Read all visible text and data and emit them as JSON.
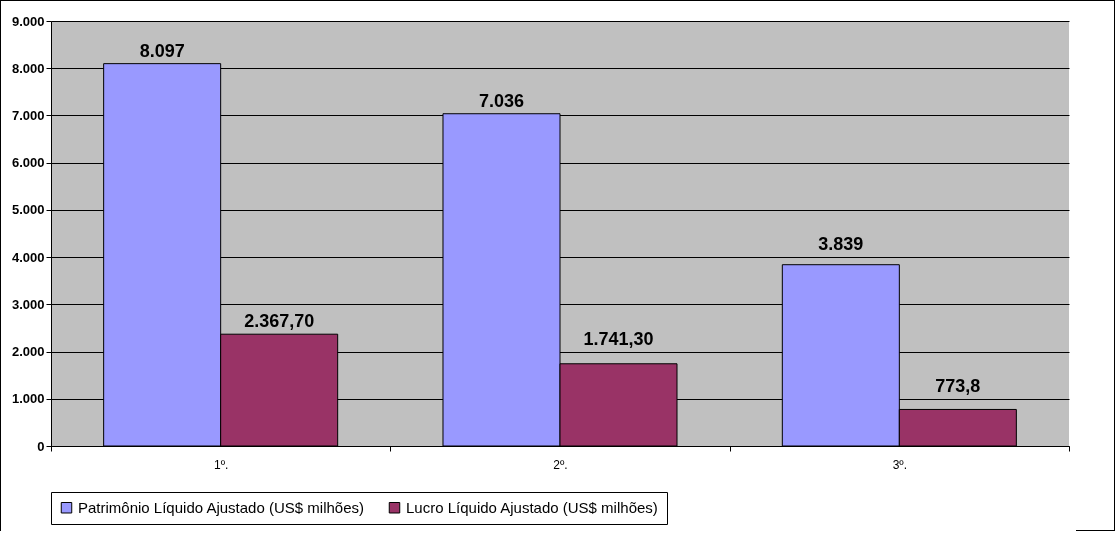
{
  "chart_data": {
    "type": "bar",
    "categories": [
      "1º.",
      "2º.",
      "3º."
    ],
    "series": [
      {
        "name": "Patrimônio Líquido Ajustado (US$ milhões)",
        "color": "#9999ff",
        "values": [
          8097,
          7036,
          3839
        ],
        "value_labels": [
          "8.097",
          "7.036",
          "3.839"
        ]
      },
      {
        "name": "Lucro Líquido Ajustado (US$ milhões)",
        "color": "#993366",
        "values": [
          2367.7,
          1741.3,
          773.8
        ],
        "value_labels": [
          "2.367,70",
          "1.741,30",
          "773,8"
        ]
      }
    ],
    "ylim": [
      0,
      9000
    ],
    "yticks": [
      {
        "value": 0,
        "label": "0"
      },
      {
        "value": 1000,
        "label": "1.000"
      },
      {
        "value": 2000,
        "label": "2.000"
      },
      {
        "value": 3000,
        "label": "3.000"
      },
      {
        "value": 4000,
        "label": "4.000"
      },
      {
        "value": 5000,
        "label": "5.000"
      },
      {
        "value": 6000,
        "label": "6.000"
      },
      {
        "value": 7000,
        "label": "7.000"
      },
      {
        "value": 8000,
        "label": "8.000"
      },
      {
        "value": 9000,
        "label": "9.000"
      }
    ],
    "grid": "y",
    "legend": "bottom"
  }
}
